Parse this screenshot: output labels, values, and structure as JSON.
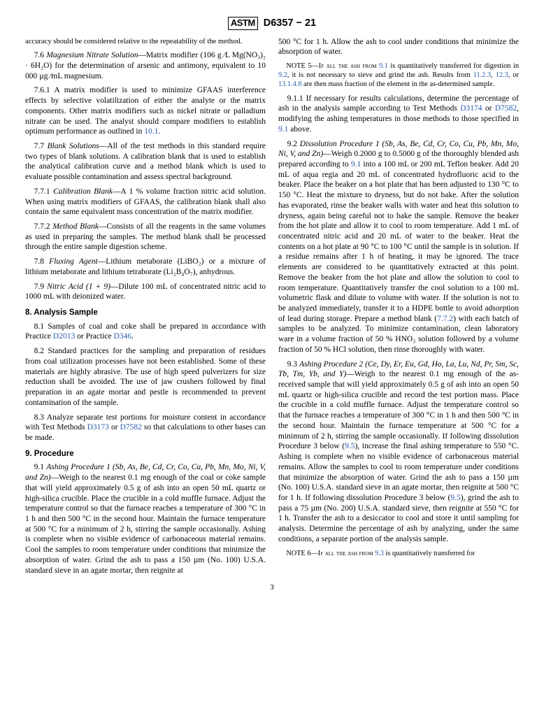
{
  "header": {
    "logo": "ASTM",
    "designation": "D6357 − 21"
  },
  "p": {
    "accuracy": "accuracy should be considered relative to the repeatability of the method.",
    "s7_6_a": "7.6 ",
    "s7_6_i": "Magnesium Nitrate Solution",
    "s7_6_b": "—Matrix modifier (106 g ⁄L Mg(NO₃)₂ · 6H₂O) for the determination of arsenic and antimony, equivalent to 10 000 µg ⁄mL magnesium.",
    "s7_6_1": "7.6.1 A matrix modifier is used to minimize GFAAS interference effects by selective volatilization of either the analyte or the matrix components. Other matrix modifiers such as nickel nitrate or palladium nitrate can be used. The analyst should compare modifiers to establish optimum performance as outlined in ",
    "s7_6_1_ref": "10.1",
    "dot": ".",
    "s7_7_a": "7.7 ",
    "s7_7_i": "Blank Solutions",
    "s7_7_b": "—All of the test methods in this standard require two types of blank solutions. A calibration blank that is used to establish the analytical calibration curve and a method blank which is used to evaluate possible contamination and assess spectral background.",
    "s7_7_1_a": "7.7.1 ",
    "s7_7_1_i": "Calibration Blank",
    "s7_7_1_b": "—A 1 % volume fraction nitric acid solution. When using matrix modifiers of GFAAS, the calibration blank shall also contain the same equivalent mass concentration of the matrix modifier.",
    "s7_7_2_a": "7.7.2 ",
    "s7_7_2_i": "Method Blank",
    "s7_7_2_b": "—Consists of all the reagents in the same volumes as used in preparing the samples. The method blank shall be processed through the entire sample digestion scheme.",
    "s7_8_a": "7.8 ",
    "s7_8_i": "Fluxing Agent",
    "s7_8_b": "—Lithium metaborate (LiBO₂) or a mixture of lithium metaborate and lithium tetraborate (Li₂B₄O₇), anhydrous.",
    "s7_9_a": "7.9 ",
    "s7_9_i": "Nitric Acid (1 + 9)",
    "s7_9_b": "—Dilute 100 mL of concentrated nitric acid to 1000 mL with deionized water.",
    "h8": "8.  Analysis Sample",
    "s8_1_a": "8.1 Samples of coal and coke shall be prepared in accordance with Practice ",
    "s8_1_r1": "D2013",
    "s8_1_b": " or Practice ",
    "s8_1_r2": "D346",
    "s8_2": "8.2 Standard practices for the sampling and preparation of residues from coal utilization processes have not been established. Some of these materials are highly abrasive. The use of high speed pulverizers for size reduction shall be avoided. The use of jaw crushers followed by final preparation in an agate mortar and pestle is recommended to prevent contamination of the sample.",
    "s8_3_a": "8.3 Analyze separate test portions for moisture content in accordance with Test Methods ",
    "s8_3_r1": "D3173",
    "s8_3_b": " or ",
    "s8_3_r2": "D7582",
    "s8_3_c": " so that calculations to other bases can be made.",
    "h9": "9.  Procedure",
    "s9_1_a": "9.1 ",
    "s9_1_i": "Ashing Procedure 1 (Sb, As, Be, Cd, Cr, Co, Cu, Pb, Mn, Mo, Ni, V, and Zn)",
    "s9_1_b": "—Weigh to the nearest 0.1 mg enough of the coal or coke sample that will yield approximately 0.5 g of ash into an open 50 mL quartz or high-silica crucible. Place the crucible in a cold muffle furnace. Adjust the temperature control so that the furnace reaches a temperature of 300 °C in 1 h and then 500 °C in the second hour. Maintain the furnace temperature at 500 °C for a minimum of 2 h, stirring the sample occasionally. Ashing is complete when no visible evidence of carbonaceous material remains. Cool the samples to room temperature under conditions that minimize the absorption of water. Grind the ash to pass a 150 µm (No. 100) U.S.A. standard sieve in an agate mortar, then reignite at ",
    "s9_1_c": "500 °C for 1 h. Allow the ash to cool under conditions that minimize the absorption of water.",
    "note5_a": "NOTE 5—If all the ash from ",
    "note5_r1": "9.1",
    "note5_b": " is quantitatively transferred for digestion in ",
    "note5_r2": "9.2",
    "note5_c": ", it is not necessary to sieve and grind the ash. Results from ",
    "note5_r3": "11.2.3",
    "note5_d": ", ",
    "note5_r4": "12.3",
    "note5_e": ", or ",
    "note5_r5": "13.1.4.8",
    "note5_f": " are then mass fraction of the element in the as-determined sample.",
    "s9_1_1_a": "9.1.1 If necessary for results calculations, determine the percentage of ash in the analysis sample according to Test Methods ",
    "s9_1_1_r1": "D3174",
    "s9_1_1_b": " or ",
    "s9_1_1_r2": "D7582",
    "s9_1_1_c": ", modifying the ashing temperatures in those methods to those specified in ",
    "s9_1_1_r3": "9.1",
    "s9_1_1_d": " above.",
    "s9_2_a": "9.2 ",
    "s9_2_i": "Dissolution Procedure 1 (Sb, As, Be, Cd, Cr, Co, Cu, Pb, Mn, Mo, Ni, V, and Zn)",
    "s9_2_b": "—Weigh 0.2000 g to 0.5000 g of the thoroughly blended ash prepared according to ",
    "s9_2_r1": "9.1",
    "s9_2_c": " into a 100 mL or 200 mL Teflon beaker. Add 20 mL of aqua regia and 20 mL of concentrated hydrofluoric acid to the beaker. Place the beaker on a hot plate that has been adjusted to 130 °C to 150 °C. Heat the mixture to dryness, but do not bake. After the solution has evaporated, rinse the beaker walls with water and heat this solution to dryness, again being careful not to bake the sample. Remove the beaker from the hot plate and allow it to cool to room temperature. Add 1 mL of concentrated nitric acid and 20 mL of water to the beaker. Heat the contents on a hot plate at 90 °C to 100 °C until the sample is in solution. If a residue remains after 1 h of heating, it may be ignored. The trace elements are considered to be quantitatively extracted at this point. Remove the beaker from the hot plate and allow the solution to cool to room temperature. Quantitatively transfer the cool solution to a 100 mL volumetric flask and dilute to volume with water. If the solution is not to be analyzed immediately, transfer it to a HDPE bottle to avoid adsorption of lead during storage. Prepare a method blank (",
    "s9_2_r2": "7.7.2",
    "s9_2_d": ") with each batch of samples to be analyzed. To minimize contamination, clean laboratory ware in a volume fraction of 50 % HNO₃ solution followed by a volume fraction of 50 % HCl solution, then rinse thoroughly with water.",
    "s9_3_a": "9.3 ",
    "s9_3_i": "Ashing Procedure 2 (Ce, Dy, Er, Eu, Gd, Ho, La, Lu, Nd, Pr, Sm, Sc, Tb, Tm, Yb, and Y)",
    "s9_3_b": "—Weigh to the nearest 0.1 mg enough of the as-received sample that will yield approximately 0.5 g of ash into an open 50 mL quartz or high-silica crucible and record the test portion mass. Place the crucible in a cold muffle furnace. Adjust the temperature control so that the furnace reaches a temperature of 300 °C in 1 h and then 500 °C in the second hour. Maintain the furnace temperature at 500 °C for a minimum of 2 h, stirring the sample occasionally. If following dissolution Procedure 3 below (",
    "s9_3_r1": "9.5",
    "s9_3_c": "), increase the final ashing temperature to 550 °C. Ashing is complete when no visible evidence of carbonaceous material remains. Allow the samples to cool to room temperature under conditions that minimize the absorption of water. Grind the ash to pass a 150 µm (No. 100) U.S.A. standard sieve in an agate mortar, then reignite at 500 °C for 1 h. If following dissolution Procedure 3 below (",
    "s9_3_r2": "9.5",
    "s9_3_d": "), grind the ash to pass a 75 µm (No. 200) U.S.A. standard sieve, then reignite at 550 °C for 1 h. Transfer the ash to a desiccator to cool and store it until sampling for analysis. Determine the percentage of ash by analyzing, under the same conditions, a separate portion of the analysis sample.",
    "note6_a": "NOTE 6—If all the ash from ",
    "note6_r1": "9.3",
    "note6_b": " is quantitatively transferred for"
  },
  "footer": {
    "page": "3"
  }
}
